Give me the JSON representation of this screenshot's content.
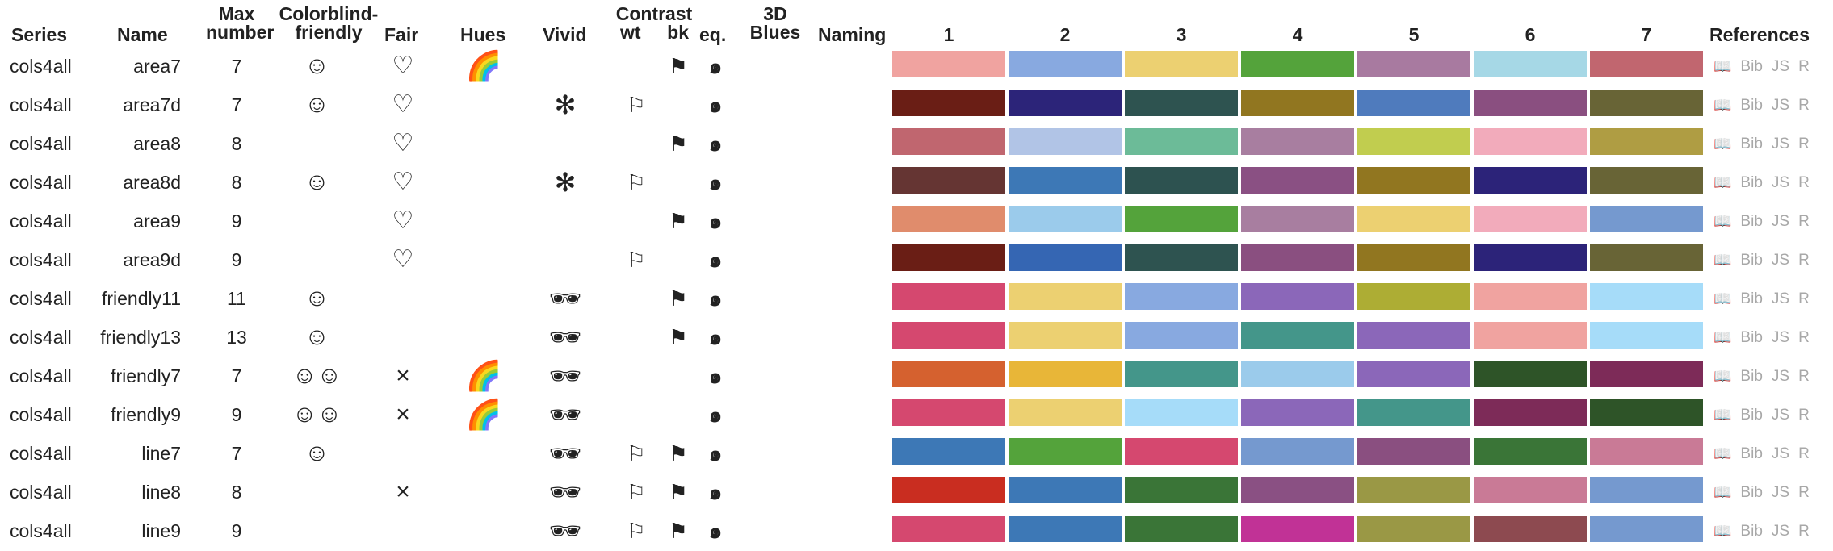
{
  "headers": {
    "series": "Series",
    "name": "Name",
    "max_line1": "Max",
    "max_line2": "number",
    "cbf_line1": "Colorblind-",
    "cbf_line2": "friendly",
    "fair": "Fair",
    "hues": "Hues",
    "vivid": "Vivid",
    "contrast": "Contrast",
    "wt": "wt",
    "bk": "bk",
    "eq": "eq.",
    "threed_line1": "3D",
    "threed_line2": "Blues",
    "naming": "Naming",
    "col1": "1",
    "col2": "2",
    "col3": "3",
    "col4": "4",
    "col5": "5",
    "col6": "6",
    "col7": "7",
    "references": "References"
  },
  "icons": {
    "colorblind_single": "smiley-icon",
    "colorblind_double": "double-smiley-icon",
    "fair": "heart-icon",
    "not_fair": "cross-icon",
    "hues": "rainbow-icon",
    "vivid_sunglasses": "sunglasses-icon",
    "vivid_asterisk": "asterisk-icon",
    "contrast_white": "white-flag-icon",
    "contrast_black": "black-flag-icon",
    "equal_luminance": "spiral-icon",
    "reference": "book-icon"
  },
  "reference_labels": {
    "bib": "Bib",
    "js": "JS",
    "r": "R"
  },
  "rows": [
    {
      "series": "cols4all",
      "name": "area7",
      "max": "7",
      "cbf": "☺",
      "fair": "♡",
      "hues": "🌈",
      "vivid": "",
      "wt": "",
      "bk": "⚑",
      "eq": "๑",
      "colors": [
        "#F0A3A0",
        "#88A9E0",
        "#ECD071",
        "#54A33B",
        "#A87AA0",
        "#A6D8E6",
        "#C1666F"
      ]
    },
    {
      "series": "cols4all",
      "name": "area7d",
      "max": "7",
      "cbf": "☺",
      "fair": "♡",
      "hues": "",
      "vivid": "✻",
      "wt": "⚐",
      "bk": "",
      "eq": "๑",
      "colors": [
        "#6A1E15",
        "#2C2479",
        "#2E5350",
        "#917620",
        "#4F7BBD",
        "#8A4F80",
        "#686436"
      ]
    },
    {
      "series": "cols4all",
      "name": "area8",
      "max": "8",
      "cbf": "",
      "fair": "♡",
      "hues": "",
      "vivid": "",
      "wt": "",
      "bk": "⚑",
      "eq": "๑",
      "colors": [
        "#C0666F",
        "#B1C4E6",
        "#6CBB98",
        "#A87EA0",
        "#C1CD4F",
        "#F2ABBB",
        "#AF9D43"
      ]
    },
    {
      "series": "cols4all",
      "name": "area8d",
      "max": "8",
      "cbf": "☺",
      "fair": "♡",
      "hues": "",
      "vivid": "✻",
      "wt": "⚐",
      "bk": "",
      "eq": "๑",
      "colors": [
        "#653533",
        "#3D78B6",
        "#2D5250",
        "#8A5083",
        "#917620",
        "#2C2379",
        "#686436"
      ]
    },
    {
      "series": "cols4all",
      "name": "area9",
      "max": "9",
      "cbf": "",
      "fair": "♡",
      "hues": "",
      "vivid": "",
      "wt": "",
      "bk": "⚑",
      "eq": "๑",
      "colors": [
        "#E08C6C",
        "#9BCBEB",
        "#54A33B",
        "#A87EA0",
        "#ECD071",
        "#F2ABBB",
        "#7599CF"
      ]
    },
    {
      "series": "cols4all",
      "name": "area9d",
      "max": "9",
      "cbf": "",
      "fair": "♡",
      "hues": "",
      "vivid": "",
      "wt": "⚐",
      "bk": "",
      "eq": "๑",
      "colors": [
        "#6A1E15",
        "#3566B3",
        "#2E5350",
        "#8A4F80",
        "#917620",
        "#2C2379",
        "#686436"
      ]
    },
    {
      "series": "cols4all",
      "name": "friendly11",
      "max": "11",
      "cbf": "☺",
      "fair": "",
      "hues": "",
      "vivid": "🕶",
      "wt": "",
      "bk": "⚑",
      "eq": "๑",
      "colors": [
        "#D5486F",
        "#ECD071",
        "#88A9E0",
        "#8B67B9",
        "#ADAD34",
        "#F0A3A0",
        "#A6DCF9"
      ]
    },
    {
      "series": "cols4all",
      "name": "friendly13",
      "max": "13",
      "cbf": "☺",
      "fair": "",
      "hues": "",
      "vivid": "🕶",
      "wt": "",
      "bk": "⚑",
      "eq": "๑",
      "colors": [
        "#D5486F",
        "#ECD071",
        "#88A9E0",
        "#44968A",
        "#8B67B9",
        "#F0A3A0",
        "#A6DCF9"
      ]
    },
    {
      "series": "cols4all",
      "name": "friendly7",
      "max": "7",
      "cbf": "☺☺",
      "fair": "×",
      "hues": "🌈",
      "vivid": "🕶",
      "wt": "",
      "bk": "",
      "eq": "๑",
      "colors": [
        "#D5612F",
        "#E8B638",
        "#44968A",
        "#9BCBEB",
        "#8B67B9",
        "#2E5428",
        "#7D2B58"
      ]
    },
    {
      "series": "cols4all",
      "name": "friendly9",
      "max": "9",
      "cbf": "☺☺",
      "fair": "×",
      "hues": "🌈",
      "vivid": "🕶",
      "wt": "",
      "bk": "",
      "eq": "๑",
      "colors": [
        "#D5486F",
        "#ECD071",
        "#A6DCF9",
        "#8B67B9",
        "#44968A",
        "#7D2B58",
        "#2E5428"
      ]
    },
    {
      "series": "cols4all",
      "name": "line7",
      "max": "7",
      "cbf": "☺",
      "fair": "",
      "hues": "",
      "vivid": "🕶",
      "wt": "⚐",
      "bk": "⚑",
      "eq": "๑",
      "colors": [
        "#3D78B6",
        "#54A33B",
        "#D5486F",
        "#7599CF",
        "#8A4F80",
        "#3A7537",
        "#C97A96"
      ]
    },
    {
      "series": "cols4all",
      "name": "line8",
      "max": "8",
      "cbf": "",
      "fair": "×",
      "hues": "",
      "vivid": "🕶",
      "wt": "⚐",
      "bk": "⚑",
      "eq": "๑",
      "colors": [
        "#C92D20",
        "#3D78B6",
        "#3A7537",
        "#8A5083",
        "#9A9845",
        "#C97A96",
        "#7599CF"
      ]
    },
    {
      "series": "cols4all",
      "name": "line9",
      "max": "9",
      "cbf": "",
      "fair": "",
      "hues": "",
      "vivid": "🕶",
      "wt": "⚐",
      "bk": "⚑",
      "eq": "๑",
      "colors": [
        "#D5486F",
        "#3D78B6",
        "#3A7537",
        "#C13296",
        "#9A9845",
        "#8D4A50",
        "#7599CF"
      ]
    }
  ]
}
